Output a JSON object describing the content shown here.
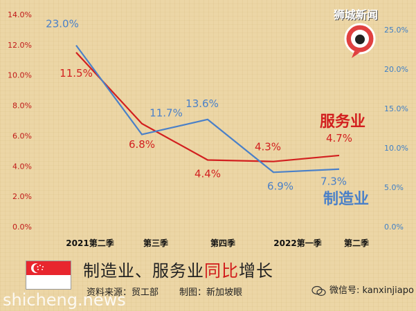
{
  "chart_data": {
    "type": "line",
    "title": "制造业、服务业同比增长",
    "categories": [
      "2021第二季",
      "第三季",
      "第四季",
      "2022第一季",
      "第二季"
    ],
    "left_axis": {
      "ticks": [
        "0.0%",
        "2.0%",
        "4.0%",
        "6.0%",
        "8.0%",
        "10.0%",
        "12.0%",
        "14.0%"
      ],
      "ylim": [
        0,
        14
      ],
      "color": "#c01818"
    },
    "right_axis": {
      "ticks": [
        "0.0%",
        "5.0%",
        "10.0%",
        "15.0%",
        "20.0%",
        "25.0%"
      ],
      "ylim": [
        0,
        27
      ],
      "color": "#3f7fc6"
    },
    "series": [
      {
        "name": "服务业",
        "axis": "left",
        "color": "#d21f1f",
        "values": [
          11.5,
          6.8,
          4.4,
          4.3,
          4.7
        ],
        "labels": [
          "11.5%",
          "6.8%",
          "4.4%",
          "4.3%",
          "4.7%"
        ]
      },
      {
        "name": "制造业",
        "axis": "right",
        "color": "#4a80c8",
        "values": [
          23.0,
          11.7,
          13.6,
          6.9,
          7.3
        ],
        "labels": [
          "23.0%",
          "11.7%",
          "13.6%",
          "6.9%",
          "7.3%"
        ]
      }
    ]
  },
  "caption": {
    "part1": "制造业、服务业",
    "highlight": "同比",
    "part2": "增长"
  },
  "source": {
    "data_source": "资料来源：贸工部",
    "made_by": "制图：新加坡眼"
  },
  "wechat": "微信号: kanxinjiapo",
  "watermark": "shicheng.news",
  "brand": "狮城新闻",
  "flag": {
    "top": "#e8262e",
    "bottom": "#ffffff"
  }
}
